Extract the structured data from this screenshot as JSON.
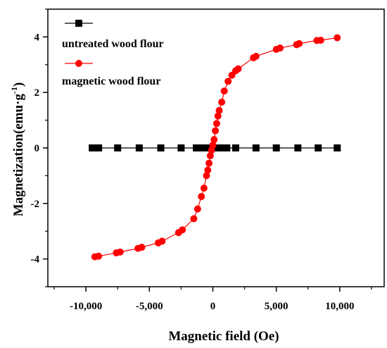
{
  "chart_data": {
    "type": "scatter",
    "xlabel": "Magnetic field (Oe)",
    "ylabel_main": "Magnetization(emu·g",
    "ylabel_sup": "-1",
    "ylabel_close": ")",
    "xlim": [
      -13000,
      13500
    ],
    "ylim": [
      -5,
      5
    ],
    "x_ticks": [
      -10000,
      -5000,
      0,
      5000,
      10000
    ],
    "x_tick_labels": [
      "-10,000",
      "-5,000",
      "0",
      "5,000",
      "10,000"
    ],
    "y_ticks": [
      -4,
      -2,
      0,
      2,
      4
    ],
    "y_tick_labels": [
      "-4",
      "-2",
      "0",
      "2",
      "4"
    ],
    "legend_position": "top-left",
    "series": [
      {
        "name": "untreated wood flour",
        "color": "#000000",
        "marker": "square",
        "x": [
          -9500,
          -9000,
          -7500,
          -5800,
          -4100,
          -2500,
          -1300,
          -1000,
          -700,
          -400,
          0,
          200,
          500,
          800,
          1100,
          1800,
          3400,
          5000,
          6700,
          8300,
          9800
        ],
        "y": [
          0,
          0,
          0,
          0,
          0,
          0,
          0,
          0,
          0,
          0,
          0,
          0,
          0,
          0,
          0,
          0,
          0,
          0,
          0,
          0,
          0
        ]
      },
      {
        "name": "magnetic wood flour",
        "color": "#ff0000",
        "marker": "circle",
        "x": [
          -9300,
          -9000,
          -7600,
          -7300,
          -5900,
          -5600,
          -4300,
          -4000,
          -2700,
          -2400,
          -1500,
          -1200,
          -900,
          -700,
          -500,
          -400,
          -300,
          -200,
          -100,
          0,
          100,
          200,
          300,
          400,
          500,
          700,
          900,
          1200,
          1500,
          1800,
          2000,
          3200,
          3400,
          5000,
          5300,
          6600,
          6800,
          8200,
          8500,
          9800
        ],
        "y": [
          -3.92,
          -3.9,
          -3.78,
          -3.75,
          -3.62,
          -3.58,
          -3.42,
          -3.36,
          -3.05,
          -2.95,
          -2.55,
          -2.2,
          -1.75,
          -1.45,
          -1.0,
          -0.8,
          -0.55,
          -0.28,
          -0.08,
          0.1,
          0.3,
          0.62,
          0.88,
          1.15,
          1.35,
          1.65,
          2.05,
          2.4,
          2.62,
          2.78,
          2.85,
          3.25,
          3.3,
          3.55,
          3.6,
          3.72,
          3.76,
          3.87,
          3.88,
          3.97
        ]
      }
    ]
  }
}
